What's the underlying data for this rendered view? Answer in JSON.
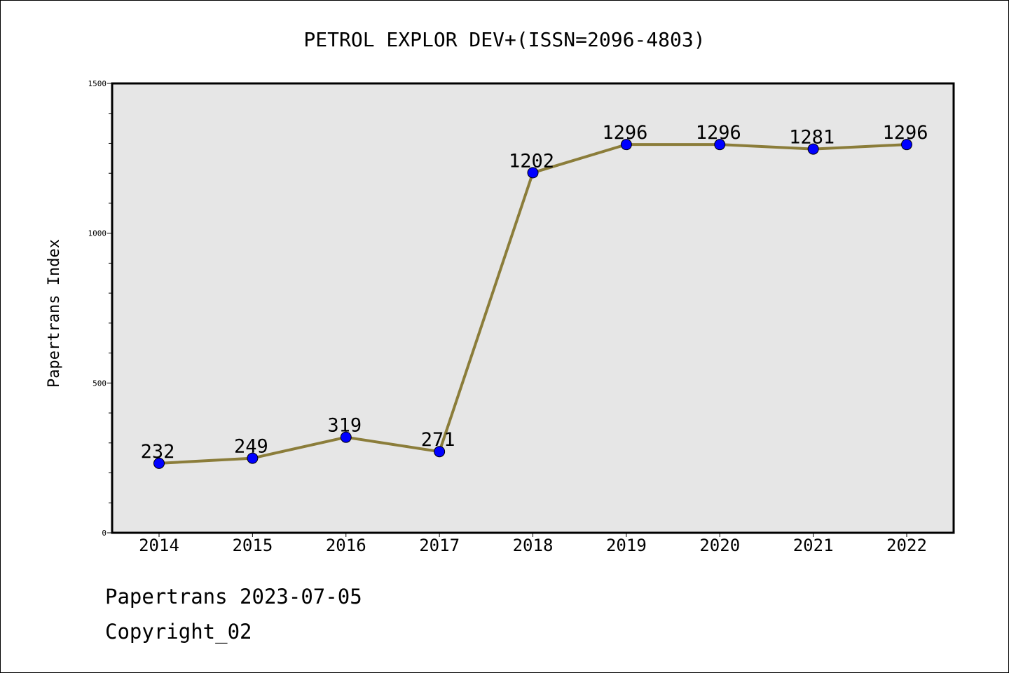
{
  "chart_data": {
    "type": "line",
    "title": "PETROL EXPLOR DEV+(ISSN=2096-4803)",
    "xlabel": "",
    "ylabel": "Papertrans Index",
    "categories": [
      "2014",
      "2015",
      "2016",
      "2017",
      "2018",
      "2019",
      "2020",
      "2021",
      "2022"
    ],
    "series": [
      {
        "values": [
          232,
          249,
          319,
          271,
          1202,
          1296,
          1296,
          1281,
          1296
        ]
      }
    ],
    "data_labels": [
      "232",
      "249",
      "319",
      "271",
      "1202",
      "1296",
      "1296",
      "1281",
      "1296"
    ],
    "ylim": [
      0,
      1500
    ],
    "yticks": [
      "0",
      "500",
      "1000",
      "1500"
    ],
    "y_minor_step": 100,
    "grid": false,
    "legend": "none",
    "colors": {
      "plot_background": "#e6e6e6",
      "line": "#8b7d3a",
      "marker": "#0000ff",
      "axis": "#000000"
    }
  },
  "footer": {
    "line1": "Papertrans 2023-07-05",
    "line2": "Copyright_02"
  }
}
